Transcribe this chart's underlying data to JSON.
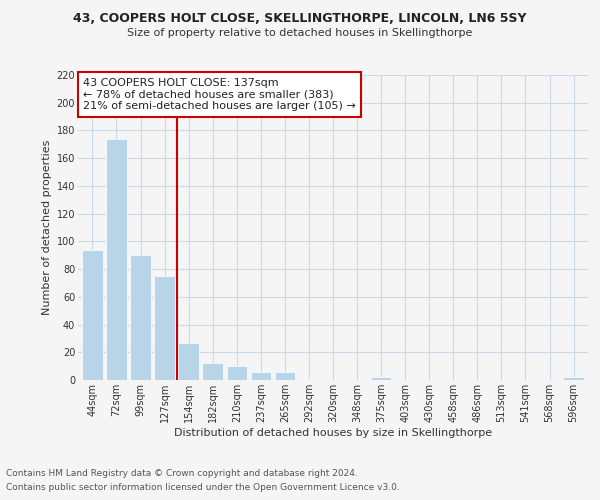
{
  "title_line1": "43, COOPERS HOLT CLOSE, SKELLINGTHORPE, LINCOLN, LN6 5SY",
  "title_line2": "Size of property relative to detached houses in Skellingthorpe",
  "xlabel": "Distribution of detached houses by size in Skellingthorpe",
  "ylabel": "Number of detached properties",
  "bar_labels": [
    "44sqm",
    "72sqm",
    "99sqm",
    "127sqm",
    "154sqm",
    "182sqm",
    "210sqm",
    "237sqm",
    "265sqm",
    "292sqm",
    "320sqm",
    "348sqm",
    "375sqm",
    "403sqm",
    "430sqm",
    "458sqm",
    "486sqm",
    "513sqm",
    "541sqm",
    "568sqm",
    "596sqm"
  ],
  "bar_values": [
    94,
    174,
    90,
    75,
    27,
    12,
    10,
    6,
    6,
    1,
    0,
    0,
    2,
    0,
    0,
    0,
    0,
    0,
    0,
    0,
    2
  ],
  "bar_color": "#b8d4e8",
  "bar_edge_color": "#ffffff",
  "vline_x": 3.5,
  "vline_color": "#cc0000",
  "annotation_text": "43 COOPERS HOLT CLOSE: 137sqm\n← 78% of detached houses are smaller (383)\n21% of semi-detached houses are larger (105) →",
  "annotation_box_color": "#ffffff",
  "annotation_box_edge": "#cc0000",
  "ylim": [
    0,
    220
  ],
  "yticks": [
    0,
    20,
    40,
    60,
    80,
    100,
    120,
    140,
    160,
    180,
    200,
    220
  ],
  "footnote_line1": "Contains HM Land Registry data © Crown copyright and database right 2024.",
  "footnote_line2": "Contains public sector information licensed under the Open Government Licence v3.0.",
  "background_color": "#f5f5f5",
  "grid_color": "#ccd9e8",
  "title_fontsize": 9,
  "subtitle_fontsize": 8,
  "axis_label_fontsize": 8,
  "tick_fontsize": 7,
  "annotation_fontsize": 8,
  "footnote_fontsize": 6.5
}
